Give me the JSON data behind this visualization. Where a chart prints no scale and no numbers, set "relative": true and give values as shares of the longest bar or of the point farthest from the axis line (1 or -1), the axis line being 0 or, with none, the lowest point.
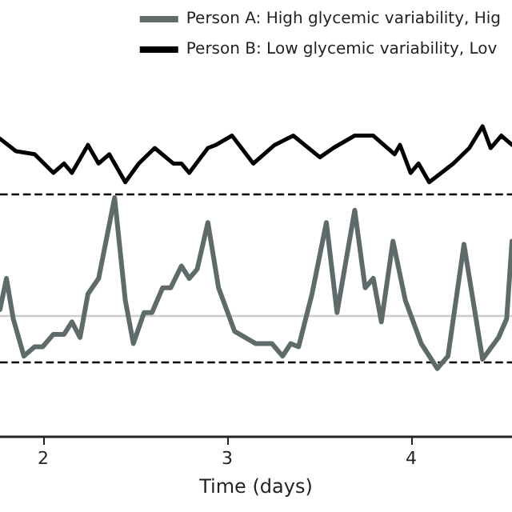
{
  "chart_data": {
    "type": "line",
    "relative": true,
    "xlabel": "Time (days)",
    "xlim": [
      1.765,
      4.548
    ],
    "xticks": [
      2,
      3,
      4
    ],
    "legend": "top right",
    "marker": "none",
    "grid": false,
    "series": [
      {
        "name": "Person A: High glycemic variability, Hig",
        "color": "#5f6b6b",
        "x": [
          1.765,
          1.8,
          1.837,
          1.895,
          1.953,
          1.997,
          2.055,
          2.113,
          2.156,
          2.2,
          2.243,
          2.301,
          2.388,
          2.446,
          2.49,
          2.548,
          2.591,
          2.649,
          2.693,
          2.751,
          2.794,
          2.837,
          2.895,
          2.953,
          3.04,
          3.098,
          3.156,
          3.243,
          3.301,
          3.345,
          3.388,
          3.461,
          3.539,
          3.597,
          3.693,
          3.75,
          3.794,
          3.838,
          3.901,
          3.968,
          4.055,
          4.142,
          4.2,
          4.287,
          4.388,
          4.475,
          4.519,
          4.548
        ],
        "values": [
          0.41,
          0.51,
          0.38,
          0.26,
          0.29,
          0.29,
          0.33,
          0.33,
          0.37,
          0.32,
          0.46,
          0.51,
          0.77,
          0.44,
          0.3,
          0.4,
          0.4,
          0.48,
          0.48,
          0.55,
          0.51,
          0.54,
          0.69,
          0.48,
          0.34,
          0.32,
          0.3,
          0.3,
          0.26,
          0.3,
          0.29,
          0.46,
          0.69,
          0.4,
          0.73,
          0.48,
          0.51,
          0.37,
          0.63,
          0.44,
          0.3,
          0.22,
          0.26,
          0.62,
          0.25,
          0.32,
          0.38,
          0.63
        ]
      },
      {
        "name": "Person B: Low glycemic variability, Lov",
        "color": "#000000",
        "x": [
          1.765,
          1.852,
          1.953,
          2.055,
          2.113,
          2.156,
          2.243,
          2.301,
          2.359,
          2.446,
          2.519,
          2.606,
          2.707,
          2.751,
          2.794,
          2.895,
          2.939,
          3.026,
          3.142,
          3.258,
          3.359,
          3.504,
          3.577,
          3.693,
          3.794,
          3.91,
          3.939,
          3.997,
          4.04,
          4.098,
          4.229,
          4.316,
          4.388,
          4.432,
          4.49,
          4.548
        ],
        "values": [
          0.96,
          0.92,
          0.91,
          0.85,
          0.88,
          0.85,
          0.94,
          0.88,
          0.91,
          0.82,
          0.88,
          0.93,
          0.88,
          0.88,
          0.85,
          0.93,
          0.94,
          0.97,
          0.88,
          0.94,
          0.97,
          0.9,
          0.93,
          0.97,
          0.97,
          0.91,
          0.94,
          0.85,
          0.88,
          0.82,
          0.88,
          0.93,
          1,
          0.93,
          0.97,
          0.94
        ]
      }
    ],
    "ref_lines": [
      {
        "axis": "y",
        "value": 0.78,
        "color": "#000000",
        "line_style": "dashed"
      },
      {
        "axis": "y",
        "value": 0.24,
        "color": "#000000",
        "line_style": "dashed"
      },
      {
        "axis": "y",
        "value": 0.39,
        "color": "#cccccc",
        "line_style": "solid"
      }
    ]
  }
}
